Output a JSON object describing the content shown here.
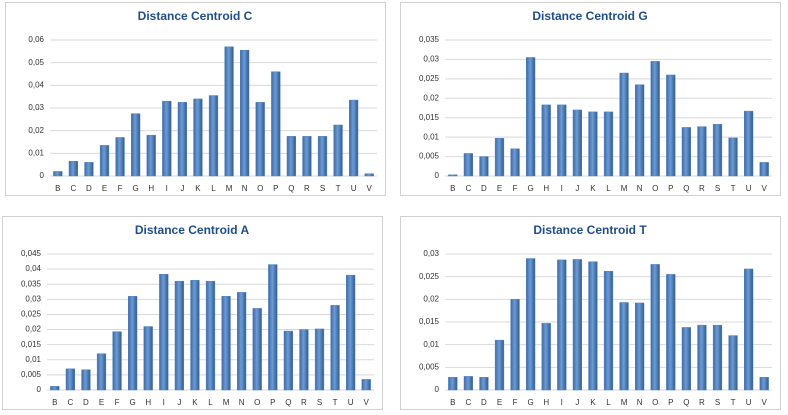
{
  "chart_data": [
    {
      "type": "bar",
      "title": "Distance Centroid C",
      "color": "#4f81bd",
      "grid": true,
      "categories": [
        "B",
        "C",
        "D",
        "E",
        "F",
        "G",
        "H",
        "I",
        "J",
        "K",
        "L",
        "M",
        "N",
        "O",
        "P",
        "Q",
        "R",
        "S",
        "T",
        "U",
        "V"
      ],
      "values": [
        0.002,
        0.0065,
        0.006,
        0.0135,
        0.017,
        0.0275,
        0.018,
        0.033,
        0.0325,
        0.034,
        0.0355,
        0.057,
        0.0555,
        0.0325,
        0.046,
        0.0175,
        0.0175,
        0.0175,
        0.0225,
        0.0335,
        0.001
      ],
      "ylim": [
        0,
        0.06
      ],
      "yticks": [
        0,
        {
          "value": 0.01,
          "label": "0,01"
        },
        {
          "value": 0.02,
          "label": "0,02"
        },
        {
          "value": 0.03,
          "label": "0,03"
        },
        {
          "value": 0.04,
          "label": "0,04"
        },
        {
          "value": 0.05,
          "label": "0,05"
        },
        {
          "value": 0.06,
          "label": "0,06"
        }
      ]
    },
    {
      "type": "bar",
      "title": "Distance Centroid G",
      "color": "#4f81bd",
      "grid": true,
      "categories": [
        "B",
        "C",
        "D",
        "E",
        "F",
        "G",
        "H",
        "I",
        "J",
        "K",
        "L",
        "M",
        "N",
        "O",
        "P",
        "Q",
        "R",
        "S",
        "T",
        "U",
        "V"
      ],
      "values": [
        0.0003,
        0.0058,
        0.005,
        0.0097,
        0.007,
        0.0305,
        0.0183,
        0.0183,
        0.017,
        0.0165,
        0.0165,
        0.0265,
        0.0235,
        0.0295,
        0.026,
        0.0125,
        0.0127,
        0.0133,
        0.0098,
        0.0167,
        0.0035
      ],
      "ylim": [
        0,
        0.035
      ],
      "yticks": [
        0,
        {
          "value": 0.005,
          "label": "0,005"
        },
        {
          "value": 0.01,
          "label": "0,01"
        },
        {
          "value": 0.015,
          "label": "0,015"
        },
        {
          "value": 0.02,
          "label": "0,02"
        },
        {
          "value": 0.025,
          "label": "0,025"
        },
        {
          "value": 0.03,
          "label": "0,03"
        },
        {
          "value": 0.035,
          "label": "0,035"
        }
      ]
    },
    {
      "type": "bar",
      "title": "Distance Centroid A",
      "color": "#4f81bd",
      "grid": true,
      "categories": [
        "B",
        "C",
        "D",
        "E",
        "F",
        "G",
        "H",
        "I",
        "J",
        "K",
        "L",
        "M",
        "N",
        "O",
        "P",
        "Q",
        "R",
        "S",
        "T",
        "U",
        "V"
      ],
      "values": [
        0.0012,
        0.007,
        0.0067,
        0.012,
        0.0193,
        0.031,
        0.021,
        0.0383,
        0.036,
        0.0363,
        0.036,
        0.031,
        0.0323,
        0.027,
        0.0415,
        0.0195,
        0.02,
        0.0202,
        0.028,
        0.038,
        0.0035
      ],
      "ylim": [
        0,
        0.045
      ],
      "yticks": [
        0,
        {
          "value": 0.005,
          "label": "0,005"
        },
        {
          "value": 0.01,
          "label": "0,01"
        },
        {
          "value": 0.015,
          "label": "0,015"
        },
        {
          "value": 0.02,
          "label": "0,02"
        },
        {
          "value": 0.025,
          "label": "0,025"
        },
        {
          "value": 0.03,
          "label": "0,03"
        },
        {
          "value": 0.035,
          "label": "0,035"
        },
        {
          "value": 0.04,
          "label": "0,04"
        },
        {
          "value": 0.045,
          "label": "0,045"
        }
      ]
    },
    {
      "type": "bar",
      "title": "Distance Centroid T",
      "color": "#4f81bd",
      "grid": true,
      "categories": [
        "B",
        "C",
        "D",
        "E",
        "F",
        "G",
        "H",
        "I",
        "J",
        "K",
        "L",
        "M",
        "N",
        "O",
        "P",
        "Q",
        "R",
        "S",
        "T",
        "U",
        "V"
      ],
      "values": [
        0.0028,
        0.003,
        0.0028,
        0.011,
        0.02,
        0.029,
        0.0147,
        0.0287,
        0.0288,
        0.0283,
        0.0262,
        0.0193,
        0.0192,
        0.0277,
        0.0255,
        0.0138,
        0.0143,
        0.0143,
        0.012,
        0.0267,
        0.0028
      ],
      "ylim": [
        0,
        0.03
      ],
      "yticks": [
        0,
        {
          "value": 0.005,
          "label": "0,005"
        },
        {
          "value": 0.01,
          "label": "0,01"
        },
        {
          "value": 0.015,
          "label": "0,015"
        },
        {
          "value": 0.02,
          "label": "0,02"
        },
        {
          "value": 0.025,
          "label": "0,025"
        },
        {
          "value": 0.03,
          "label": "0,03"
        }
      ]
    }
  ]
}
